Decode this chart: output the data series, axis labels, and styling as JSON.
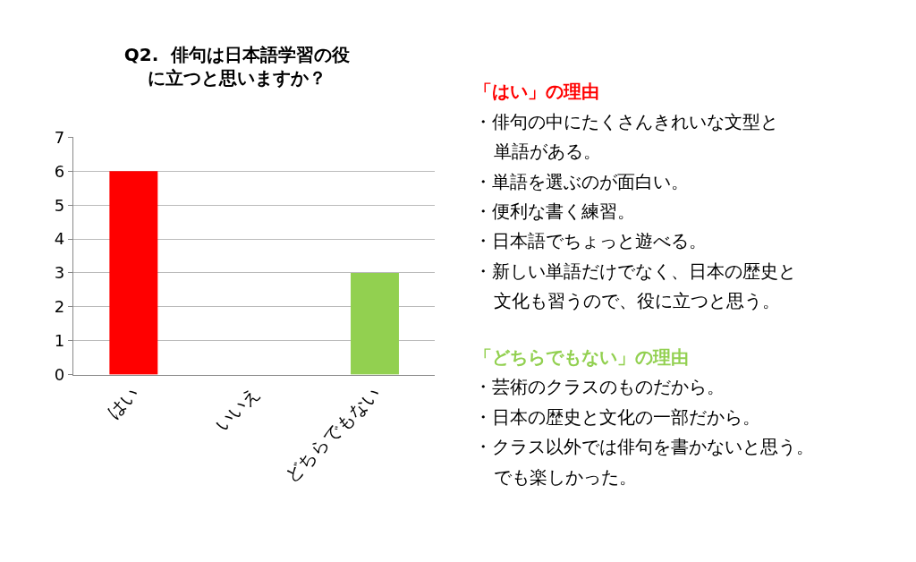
{
  "chart_data": {
    "type": "bar",
    "title": "Q2.  俳句は日本語学習の役に立つと思いますか？",
    "categories": [
      "はい",
      "いいえ",
      "どちらでもない"
    ],
    "values": [
      6,
      0,
      3
    ],
    "colors": [
      "#ff0000",
      "#ff0000",
      "#92d050"
    ],
    "ylim": [
      0,
      7
    ],
    "yticks": [
      0,
      1,
      2,
      3,
      4,
      5,
      6,
      7
    ],
    "grid": "y",
    "legend": false,
    "annotations": [
      "「はい」の理由",
      "・俳句の中にたくさんきれいな文型と",
      "単語がある。",
      "・単語を選ぶのが面白い。",
      "・便利な書く練習。",
      "・日本語でちょっと遊べる。",
      "・新しい単語だけでなく、日本の歴史と",
      "文化も習うので、役に立つと思う。",
      "「どちらでもない」の理由",
      "・芸術のクラスのものだから。",
      "・日本の歴史と文化の一部だから。",
      "・クラス以外では俳句を書かないと思う。",
      "でも楽しかった。"
    ]
  }
}
